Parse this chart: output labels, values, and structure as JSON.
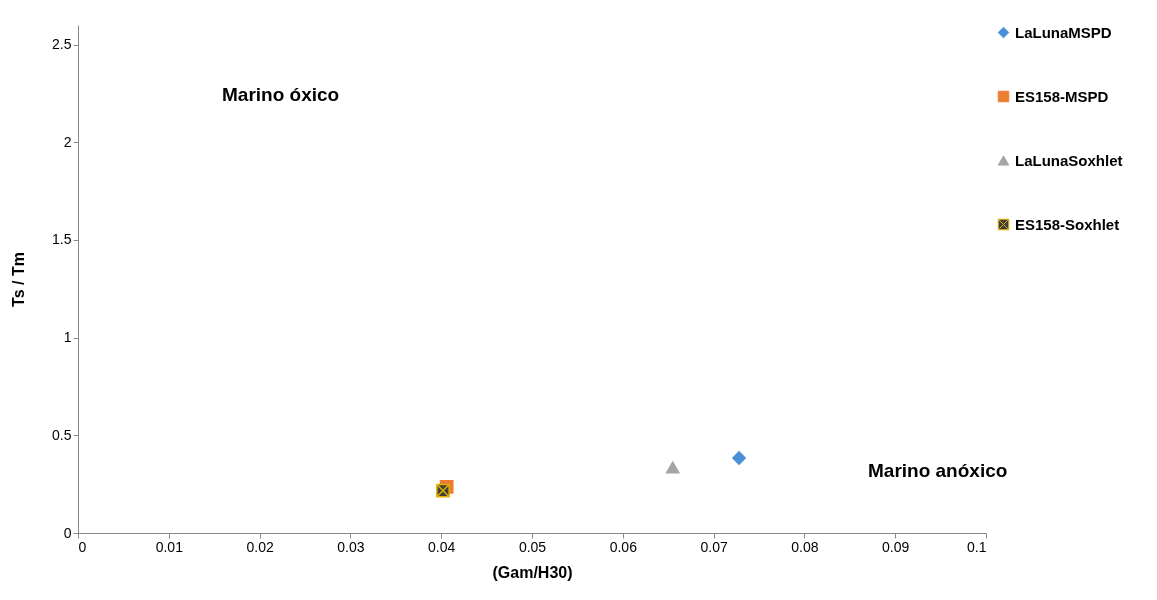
{
  "chart_data": {
    "type": "scatter",
    "xlabel": "(Gam/H30)",
    "ylabel": "Ts / Tm",
    "xlim": [
      0,
      0.1
    ],
    "xticks": [
      0,
      0.01,
      0.02,
      0.03,
      0.04,
      0.05,
      0.06,
      0.07,
      0.08,
      0.09,
      0.1
    ],
    "ylim": [
      0,
      2.6
    ],
    "yticks": [
      0,
      0.5,
      1,
      1.5,
      2,
      2.5
    ],
    "grid": false,
    "legend": "right",
    "series": [
      {
        "name": "LaLunaMSPD",
        "color": "#4a8fd8",
        "marker": "diamond",
        "x": [
          0.0728
        ],
        "values": [
          0.384
        ]
      },
      {
        "name": "ES158-MSPD",
        "color": "#ed7d31",
        "marker": "square",
        "x": [
          0.0406
        ],
        "values": [
          0.236
        ]
      },
      {
        "name": "LaLunaSoxhlet",
        "color": "#a5a5a5",
        "marker": "triangle",
        "x": [
          0.0655
        ],
        "values": [
          0.335
        ]
      },
      {
        "name": "ES158-Soxhlet",
        "color": "#3f3f3f",
        "marker": "cross",
        "x": [
          0.0402
        ],
        "values": [
          0.217
        ]
      }
    ],
    "annotations": [
      "Marino óxico",
      "Marino  anóxico"
    ]
  }
}
